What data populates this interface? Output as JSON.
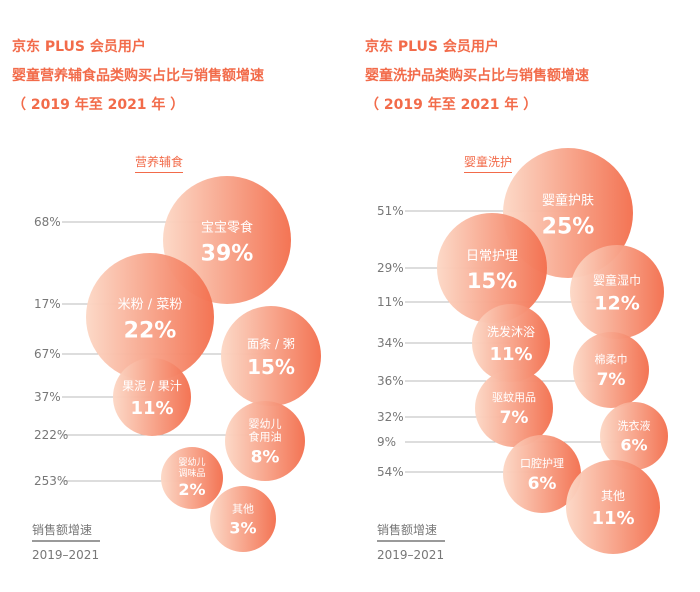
{
  "charts": [
    {
      "title": [
        "京东 PLUS 会员用户",
        "婴童营养辅食品类购买占比与销售额增速",
        "（ 2019 年至 2021 年 ）"
      ],
      "category": "营养辅食",
      "legend": {
        "label": "销售额增速",
        "period": "2019–2021"
      }
    },
    {
      "title": [
        "京东 PLUS 会员用户",
        "婴童洗护品类购买占比与销售额增速",
        "（ 2019 年至 2021 年 ）"
      ],
      "category": "婴童洗护",
      "legend": {
        "label": "销售额增速",
        "period": "2019–2021"
      }
    }
  ],
  "chart_data": [
    {
      "type": "bubble",
      "title": "京东 PLUS 会员用户 婴童营养辅食品类购买占比与销售额增速（2019 年至 2021 年）",
      "category": "营养辅食",
      "series": [
        {
          "name": "宝宝零食",
          "share": "39%",
          "growth": "68%",
          "share_value": 39,
          "growth_value": 68
        },
        {
          "name": "米粉 / 菜粉",
          "share": "22%",
          "growth": "17%",
          "share_value": 22,
          "growth_value": 17
        },
        {
          "name": "面条 / 粥",
          "share": "15%",
          "growth": "67%",
          "share_value": 15,
          "growth_value": 67
        },
        {
          "name": "果泥 / 果汁",
          "share": "11%",
          "growth": "37%",
          "share_value": 11,
          "growth_value": 37
        },
        {
          "name": "婴幼儿\n食用油",
          "share": "8%",
          "growth": "222%",
          "share_value": 8,
          "growth_value": 222
        },
        {
          "name": "婴幼儿\n调味品",
          "share": "2%",
          "growth": "253%",
          "share_value": 2,
          "growth_value": 253
        },
        {
          "name": "其他",
          "share": "3%",
          "growth": null,
          "share_value": 3,
          "growth_value": null
        }
      ],
      "legend": "销售额增速 2019–2021",
      "colors": {
        "bubble_start": "#fcd8c6",
        "bubble_end": "#f3704f",
        "text": "#ffffff",
        "label": "#777777",
        "line": "#bbbbbb"
      }
    },
    {
      "type": "bubble",
      "title": "京东 PLUS 会员用户 婴童洗护品类购买占比与销售额增速（2019 年至 2021 年）",
      "category": "婴童洗护",
      "series": [
        {
          "name": "婴童护肤",
          "share": "25%",
          "growth": "51%",
          "share_value": 25,
          "growth_value": 51
        },
        {
          "name": "日常护理",
          "share": "15%",
          "growth": "29%",
          "share_value": 15,
          "growth_value": 29
        },
        {
          "name": "婴童湿巾",
          "share": "12%",
          "growth": "11%",
          "share_value": 12,
          "growth_value": 11
        },
        {
          "name": "洗发沐浴",
          "share": "11%",
          "growth": "34%",
          "share_value": 11,
          "growth_value": 34
        },
        {
          "name": "棉柔巾",
          "share": "7%",
          "growth": "36%",
          "share_value": 7,
          "growth_value": 36
        },
        {
          "name": "驱蚊用品",
          "share": "7%",
          "growth": "32%",
          "share_value": 7,
          "growth_value": 32
        },
        {
          "name": "洗衣液",
          "share": "6%",
          "growth": "9%",
          "share_value": 6,
          "growth_value": 9
        },
        {
          "name": "口腔护理",
          "share": "6%",
          "growth": "54%",
          "share_value": 6,
          "growth_value": 54
        },
        {
          "name": "其他",
          "share": "11%",
          "growth": null,
          "share_value": 11,
          "growth_value": null
        }
      ],
      "legend": "销售额增速 2019–2021",
      "colors": {
        "bubble_start": "#fcd8c6",
        "bubble_end": "#f3704f",
        "text": "#ffffff",
        "label": "#777777",
        "line": "#bbbbbb"
      }
    }
  ]
}
